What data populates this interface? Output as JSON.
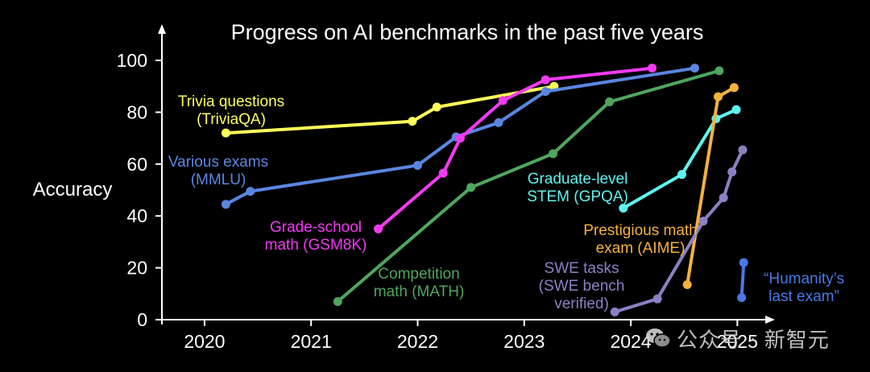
{
  "chart_data": {
    "type": "line",
    "title": "Progress on AI benchmarks in the past five years",
    "ylabel": "Accuracy",
    "xlabel": "",
    "xlim": [
      2019.6,
      2025.3
    ],
    "ylim": [
      0,
      100
    ],
    "x_ticks": [
      2020,
      2021,
      2022,
      2023,
      2024,
      2025
    ],
    "x_tick_labels": [
      "2020",
      "2021",
      "2022",
      "2023",
      "2024",
      "2025"
    ],
    "y_ticks": [
      0,
      20,
      40,
      60,
      80,
      100
    ],
    "y_tick_labels": [
      "0",
      "20",
      "40",
      "60",
      "80",
      "100"
    ],
    "grid": false,
    "legend": "none (direct labels)",
    "series": [
      {
        "name": "Trivia questions (TriviaQA)",
        "label_lines": [
          "Trivia questions",
          "(TriviaQA)"
        ],
        "color": "#ffff5a",
        "x": [
          2020.2,
          2021.95,
          2022.18,
          2023.28
        ],
        "y": [
          72,
          76.5,
          82,
          90
        ]
      },
      {
        "name": "Various exams (MMLU)",
        "label_lines": [
          "Various exams",
          "(MMLU)"
        ],
        "color": "#5b86e0",
        "x": [
          2020.2,
          2020.43,
          2022.0,
          2022.36,
          2022.76,
          2023.2,
          2024.6
        ],
        "y": [
          44.5,
          49.5,
          59.5,
          70.5,
          76,
          88,
          97
        ]
      },
      {
        "name": "Grade-school math (GSM8K)",
        "label_lines": [
          "Grade-school",
          "math (GSM8K)"
        ],
        "color": "#f23af2",
        "x": [
          2021.63,
          2022.24,
          2022.4,
          2022.8,
          2023.2,
          2024.2
        ],
        "y": [
          35,
          56.5,
          70,
          84.5,
          92.5,
          97
        ]
      },
      {
        "name": "Competition math (MATH)",
        "label_lines": [
          "Competition",
          "math (MATH)"
        ],
        "color": "#4fa65e",
        "x": [
          2021.25,
          2022.5,
          2023.27,
          2023.8,
          2024.83
        ],
        "y": [
          7,
          51,
          64,
          84,
          96
        ]
      },
      {
        "name": "Graduate-level STEM (GPQA)",
        "label_lines": [
          "Graduate-level",
          "STEM (GPQA)"
        ],
        "color": "#5ff5f0",
        "x": [
          2023.93,
          2024.48,
          2024.8,
          2024.99
        ],
        "y": [
          43,
          56,
          77.5,
          81
        ]
      },
      {
        "name": "Prestigious math exam (AIME)",
        "label_lines": [
          "Prestigious math",
          "exam (AIME)"
        ],
        "color": "#f4b23c",
        "x": [
          2024.53,
          2024.82,
          2024.97
        ],
        "y": [
          13.5,
          86,
          89.5
        ]
      },
      {
        "name": "SWE tasks (SWE bench verified)",
        "label_lines": [
          "SWE tasks",
          "(SWE bench",
          "verified)"
        ],
        "color": "#8c80c4",
        "x": [
          2023.85,
          2024.25,
          2024.68,
          2024.87,
          2024.95,
          2025.05
        ],
        "y": [
          3,
          8,
          38,
          47,
          57,
          65.5
        ]
      },
      {
        "name": "“Humanity’s last exam”",
        "label_lines": [
          "“Humanity’s",
          "last exam”"
        ],
        "color": "#4a78e6",
        "x": [
          2025.04,
          2025.06
        ],
        "y": [
          8.5,
          22
        ]
      }
    ]
  },
  "watermark": {
    "text": "公众号 · 新智元",
    "logo": "wechat-logo"
  }
}
